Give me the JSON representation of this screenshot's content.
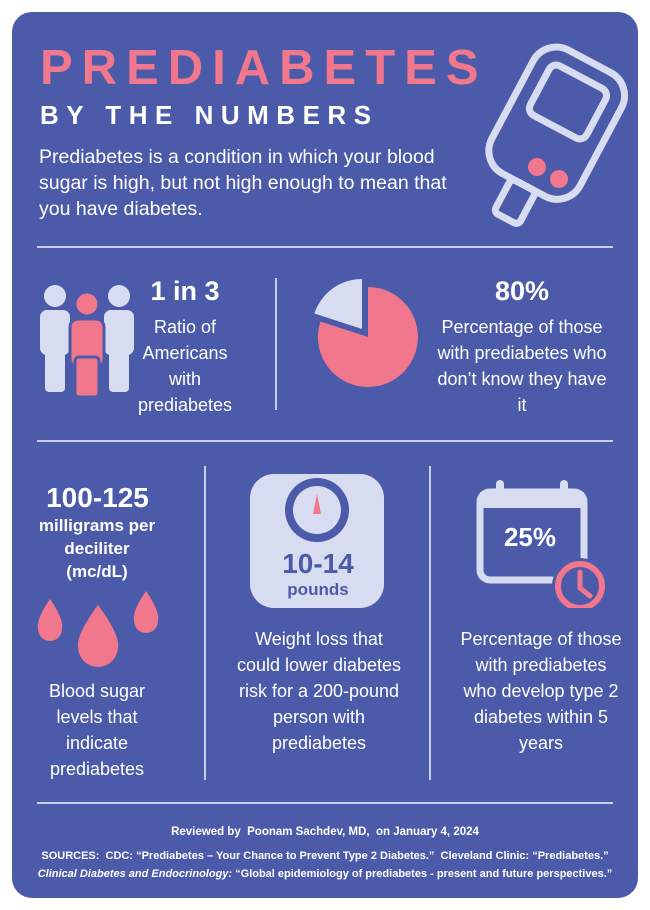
{
  "header": {
    "title": "PREDIABETES",
    "subtitle": "BY THE NUMBERS",
    "intro": "Prediabetes is a condition in which your blood sugar is high, but not high enough to mean that you have diabetes."
  },
  "stats": [
    {
      "figure": "1 in 3",
      "description": "Ratio of Americans with prediabetes"
    },
    {
      "figure": "80%",
      "description": "Percentage of those with prediabetes who don’t know they have it"
    },
    {
      "figure": "100-125",
      "unit": "milligrams per deciliter (mc/dL)",
      "description": "Blood sugar levels that indicate prediabetes"
    },
    {
      "figure": "10-14",
      "unit": "pounds",
      "description": "Weight loss that could lower diabetes  risk for a 200-pound person with prediabetes"
    },
    {
      "figure": "25%",
      "description": "Percentage of those with prediabetes who develop type 2 diabetes within 5 years"
    }
  ],
  "footer": {
    "review": "Reviewed by  Poonam Sachdev, MD,  on January 4, 2024",
    "sources_line1": "SOURCES:  CDC: “Prediabetes – Your Chance to Prevent Type 2 Diabetes.”  Cleveland Clinic: “Prediabetes.”",
    "sources_italic": "Clinical Diabetes and Endocrinology:",
    "sources_line2": " “Global epidemiology of prediabetes - present and future perspectives.”"
  }
}
